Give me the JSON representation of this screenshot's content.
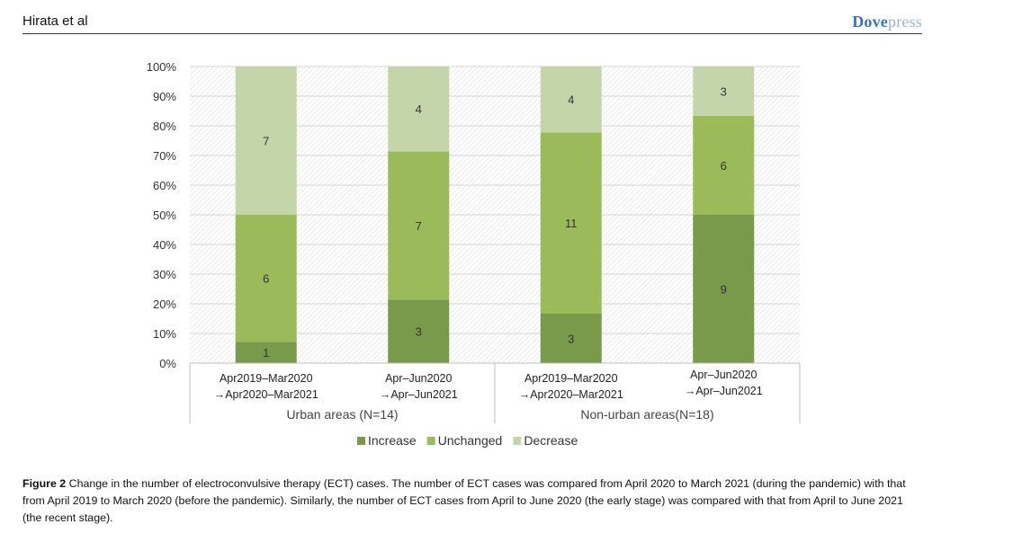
{
  "header": {
    "author": "Hirata et al",
    "brand_part1": "Dove",
    "brand_part2": "press"
  },
  "caption": {
    "label": "Figure 2",
    "text": " Change in the number of electroconvulsive therapy (ECT) cases. The number of ECT cases was compared from April 2020 to March 2021 (during the pandemic) with that from April 2019 to March 2020 (before the pandemic). Similarly, the number of ECT cases from April to June 2020 (the early stage) was compared with that from April to June 2021 (the recent stage)."
  },
  "chart_data": {
    "type": "bar",
    "stacked": "percent",
    "ylim": [
      0,
      100
    ],
    "yticks": [
      "0%",
      "10%",
      "20%",
      "30%",
      "40%",
      "50%",
      "60%",
      "70%",
      "80%",
      "90%",
      "100%"
    ],
    "groups": [
      {
        "label": "Urban areas (N=14)",
        "categories": [
          0,
          1
        ]
      },
      {
        "label": "Non-urban areas(N=18)",
        "categories": [
          2,
          3
        ]
      }
    ],
    "categories": [
      [
        "Apr2019–Mar2020",
        "→Apr2020–Mar2021"
      ],
      [
        "Apr–Jun2020",
        "→Apr–Jun2021"
      ],
      [
        "Apr2019–Mar2020",
        "→Apr2020–Mar2021"
      ],
      [
        "Apr–Jun2020",
        "→Apr–Jun2021"
      ]
    ],
    "series": [
      {
        "name": "Increase",
        "color": "#7a9a4b",
        "values": [
          1,
          3,
          3,
          9
        ]
      },
      {
        "name": "Unchanged",
        "color": "#9bbb5b",
        "values": [
          6,
          7,
          11,
          6
        ]
      },
      {
        "name": "Decrease",
        "color": "#c4d6a9",
        "values": [
          7,
          4,
          4,
          3
        ]
      }
    ],
    "legend_position": "bottom"
  }
}
